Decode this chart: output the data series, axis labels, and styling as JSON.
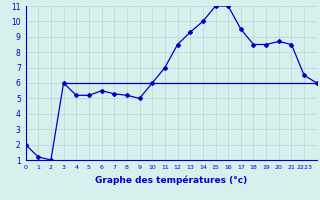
{
  "xlabel": "Graphe des températures (°c)",
  "background_color": "#d6f0ee",
  "line_color": "#0000cc",
  "grid_color": "#b0d8d0",
  "x_min": 0,
  "x_max": 23,
  "y_min": 1,
  "y_max": 11,
  "line1_x": [
    0,
    1,
    2,
    3,
    4,
    5,
    6,
    7,
    8,
    9,
    10,
    11,
    12,
    13,
    14,
    15,
    16,
    17,
    18,
    19,
    20,
    21,
    22,
    23
  ],
  "line1_y": [
    2.0,
    1.2,
    1.0,
    6.0,
    5.2,
    5.2,
    5.5,
    5.3,
    5.2,
    5.0,
    6.0,
    7.0,
    8.5,
    9.3,
    10.0,
    11.0,
    11.0,
    9.5,
    8.5,
    8.5,
    8.7,
    8.5,
    6.5,
    6.0
  ],
  "line2_x": [
    3,
    4,
    5,
    6,
    7,
    8,
    9,
    10,
    11,
    12,
    13,
    14,
    15,
    16,
    17,
    18,
    19,
    20,
    21,
    22,
    23
  ],
  "line2_y": [
    6.0,
    6.0,
    6.0,
    6.0,
    6.0,
    6.0,
    6.0,
    6.0,
    6.0,
    6.0,
    6.0,
    6.0,
    6.0,
    6.0,
    6.0,
    6.0,
    6.0,
    6.0,
    6.0,
    6.0,
    6.0
  ],
  "xtick_labels": [
    "0",
    "1",
    "2",
    "3",
    "4",
    "5",
    "6",
    "7",
    "8",
    "9",
    "10",
    "11",
    "12",
    "13",
    "14",
    "15",
    "16",
    "17",
    "18",
    "19",
    "20",
    "21",
    "2223"
  ],
  "ytick_labels": [
    "1",
    "2",
    "3",
    "4",
    "5",
    "6",
    "7",
    "8",
    "9",
    "10",
    "11"
  ]
}
